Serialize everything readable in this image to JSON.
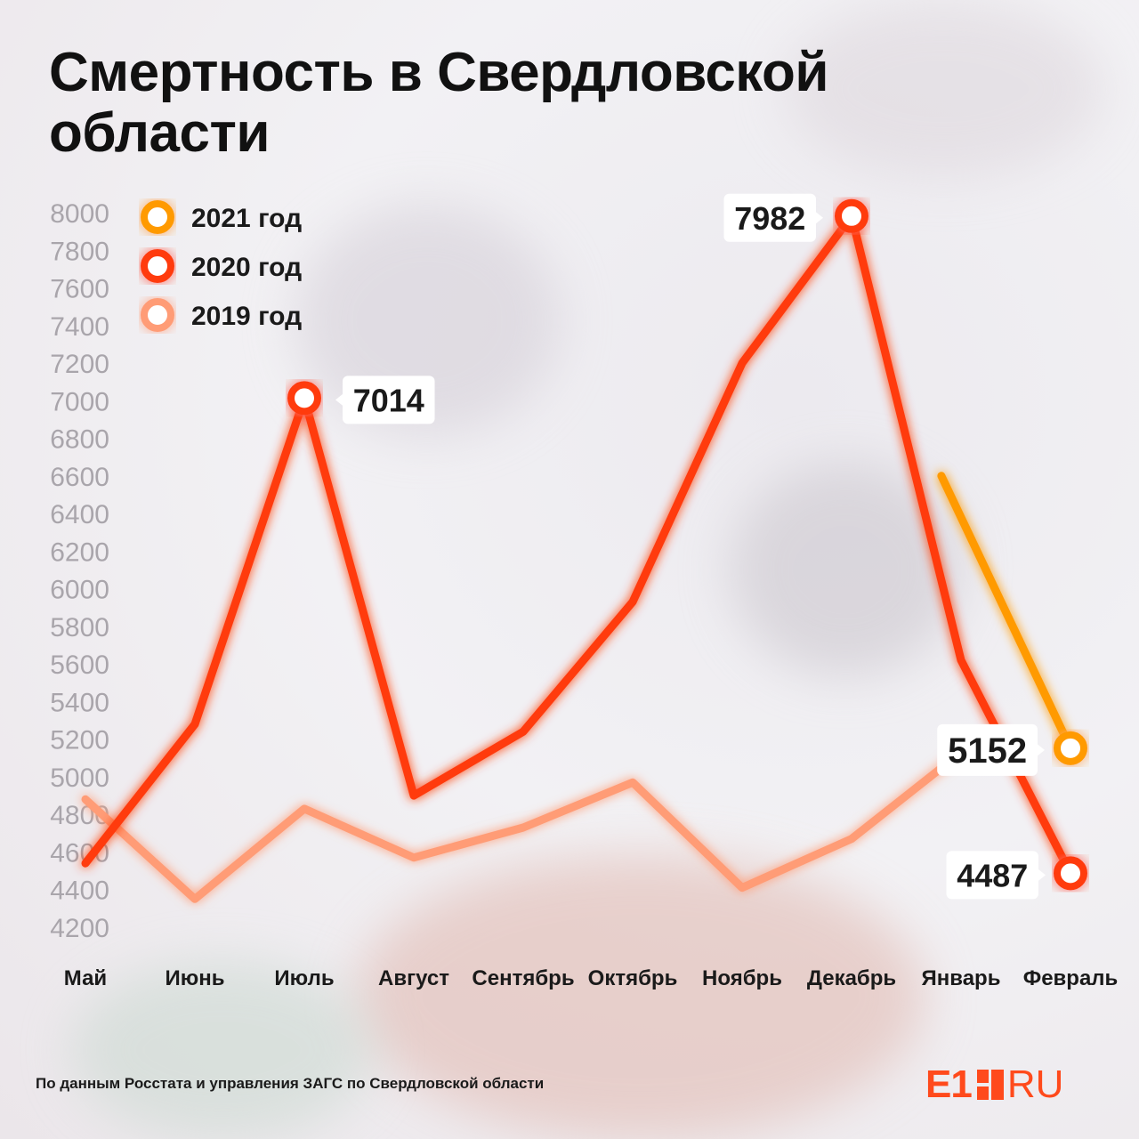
{
  "title": "Смертность в Свердловской области",
  "source": "По данным Росстата и управления ЗАГС по Свердловской области",
  "logo": {
    "left": "E1",
    "right": "RU"
  },
  "legend": [
    {
      "label": "2021 год",
      "color": "#ff9a00"
    },
    {
      "label": "2020 год",
      "color": "#ff3a0c"
    },
    {
      "label": "2019 год",
      "color": "#ff9c76"
    }
  ],
  "chart_data": {
    "type": "line",
    "title": "Смертность в Свердловской области",
    "categories": [
      "Май",
      "Июнь",
      "Июль",
      "Август",
      "Сентябрь",
      "Октябрь",
      "Ноябрь",
      "Декабрь",
      "Январь",
      "Февраль"
    ],
    "ylim": [
      4200,
      8000
    ],
    "yticks": [
      8000,
      7800,
      7600,
      7400,
      7200,
      7000,
      6800,
      6600,
      6400,
      6200,
      6000,
      5800,
      5600,
      5400,
      5200,
      5000,
      4800,
      4600,
      4400,
      4200
    ],
    "grid": false,
    "legend_position": "top-left",
    "series": [
      {
        "name": "2020 год",
        "color": "#ff3a0c",
        "values": [
          4540,
          5280,
          7014,
          4900,
          5240,
          5930,
          7200,
          7982,
          5620,
          4487
        ]
      },
      {
        "name": "2019 год",
        "color": "#ff9c76",
        "values": [
          4880,
          4350,
          4830,
          4570,
          4730,
          4970,
          4410,
          4670,
          5130,
          null
        ]
      },
      {
        "name": "2021 год",
        "color": "#ff9a00",
        "values": [
          null,
          null,
          null,
          null,
          null,
          null,
          null,
          null,
          6600,
          5152
        ],
        "start_index_offset": 0.82
      }
    ],
    "annotations": [
      {
        "text": "7014",
        "category": "Июль",
        "value": 7014
      },
      {
        "text": "7982",
        "category": "Декабрь",
        "value": 7982
      },
      {
        "text": "5152",
        "category": "Февраль",
        "value": 5152
      },
      {
        "text": "4487",
        "category": "Февраль",
        "value": 4487
      }
    ]
  }
}
